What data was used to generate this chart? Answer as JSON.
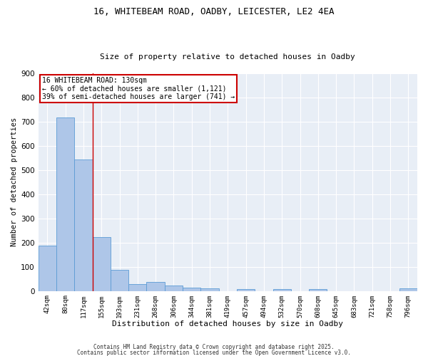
{
  "title_line1": "16, WHITEBEAM ROAD, OADBY, LEICESTER, LE2 4EA",
  "title_line2": "Size of property relative to detached houses in Oadby",
  "xlabel": "Distribution of detached houses by size in Oadby",
  "ylabel": "Number of detached properties",
  "categories": [
    "42sqm",
    "80sqm",
    "117sqm",
    "155sqm",
    "193sqm",
    "231sqm",
    "268sqm",
    "306sqm",
    "344sqm",
    "381sqm",
    "419sqm",
    "457sqm",
    "494sqm",
    "532sqm",
    "570sqm",
    "608sqm",
    "645sqm",
    "683sqm",
    "721sqm",
    "758sqm",
    "796sqm"
  ],
  "values": [
    188,
    716,
    544,
    224,
    88,
    28,
    37,
    22,
    13,
    12,
    0,
    8,
    0,
    7,
    0,
    7,
    0,
    0,
    0,
    0,
    10
  ],
  "bar_color": "#aec6e8",
  "bar_edge_color": "#5b9bd5",
  "bg_color": "#e8eef6",
  "grid_color": "#ffffff",
  "vline_color": "#cc0000",
  "vline_xindex": 2,
  "annotation_text": "16 WHITEBEAM ROAD: 130sqm\n← 60% of detached houses are smaller (1,121)\n39% of semi-detached houses are larger (741) →",
  "annotation_box_edgecolor": "#cc0000",
  "footer_line1": "Contains HM Land Registry data © Crown copyright and database right 2025.",
  "footer_line2": "Contains public sector information licensed under the Open Government Licence v3.0.",
  "ylim": [
    0,
    900
  ],
  "yticks": [
    0,
    100,
    200,
    300,
    400,
    500,
    600,
    700,
    800,
    900
  ]
}
